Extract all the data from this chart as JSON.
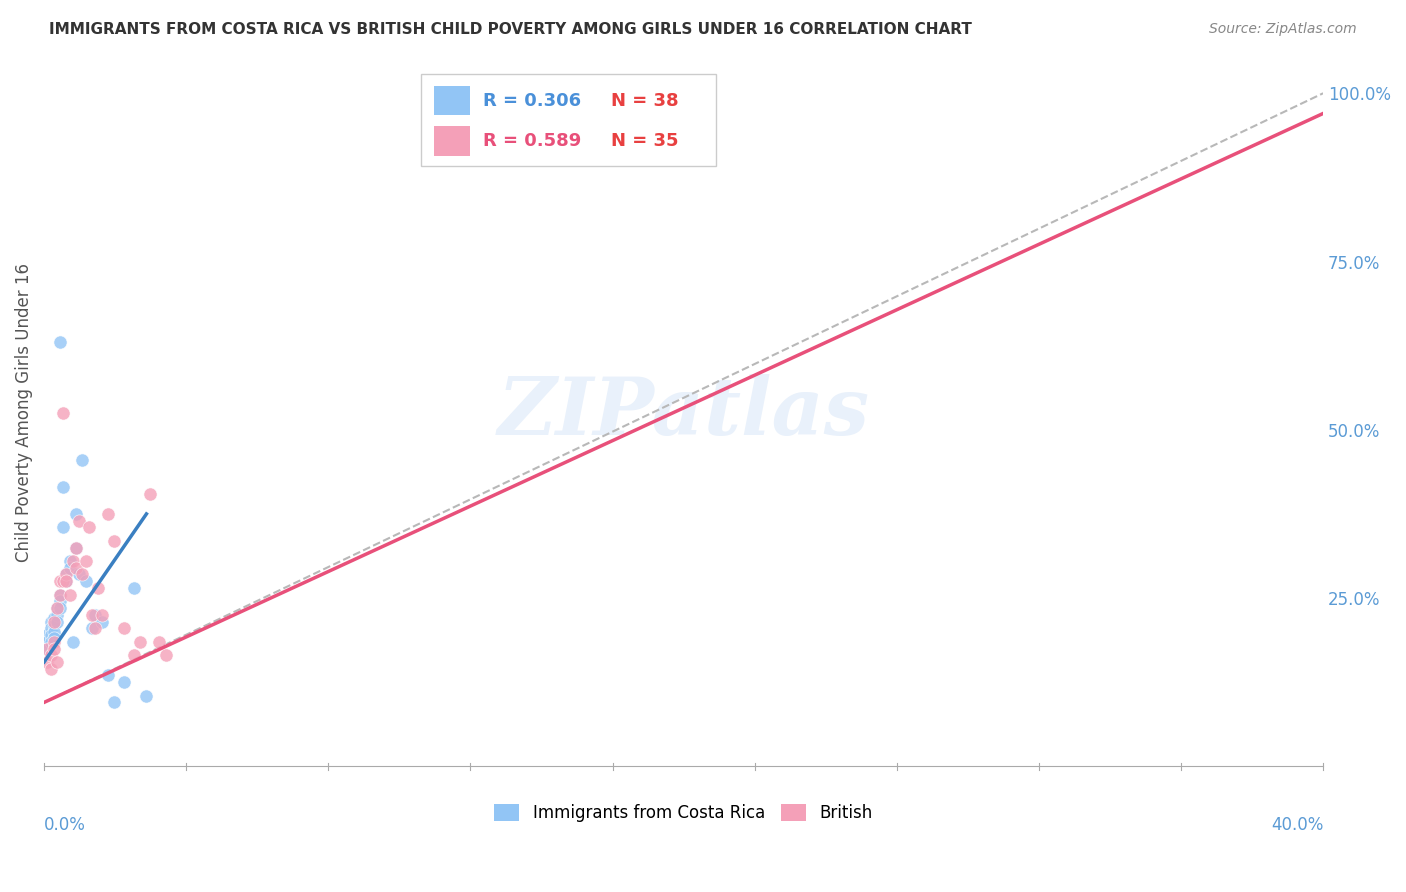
{
  "title": "IMMIGRANTS FROM COSTA RICA VS BRITISH CHILD POVERTY AMONG GIRLS UNDER 16 CORRELATION CHART",
  "source": "Source: ZipAtlas.com",
  "ylabel": "Child Poverty Among Girls Under 16",
  "legend1_r": "R = 0.306",
  "legend1_n": "N = 38",
  "legend2_r": "R = 0.589",
  "legend2_n": "N = 35",
  "legend_label1": "Immigrants from Costa Rica",
  "legend_label2": "British",
  "blue_color": "#92c5f5",
  "pink_color": "#f4a0b8",
  "blue_line_color": "#3a7fc1",
  "pink_line_color": "#e8507a",
  "dashed_line_color": "#b8b8b8",
  "legend_r_blue": "#4a90d9",
  "legend_r_pink": "#e8507a",
  "legend_n_color": "#e84040",
  "background_color": "#ffffff",
  "watermark": "ZIPatlas",
  "blue_scatter_x": [
    0.001,
    0.001,
    0.001,
    0.002,
    0.002,
    0.002,
    0.002,
    0.003,
    0.003,
    0.003,
    0.003,
    0.004,
    0.004,
    0.004,
    0.005,
    0.005,
    0.005,
    0.005,
    0.006,
    0.006,
    0.007,
    0.007,
    0.008,
    0.008,
    0.009,
    0.01,
    0.01,
    0.011,
    0.012,
    0.013,
    0.015,
    0.016,
    0.018,
    0.02,
    0.022,
    0.025,
    0.028,
    0.032
  ],
  "blue_scatter_y": [
    0.195,
    0.185,
    0.175,
    0.215,
    0.205,
    0.195,
    0.185,
    0.22,
    0.21,
    0.2,
    0.19,
    0.235,
    0.225,
    0.215,
    0.63,
    0.255,
    0.245,
    0.235,
    0.415,
    0.355,
    0.285,
    0.275,
    0.305,
    0.295,
    0.185,
    0.375,
    0.325,
    0.285,
    0.455,
    0.275,
    0.205,
    0.225,
    0.215,
    0.135,
    0.095,
    0.125,
    0.265,
    0.105
  ],
  "pink_scatter_x": [
    0.001,
    0.001,
    0.002,
    0.002,
    0.003,
    0.003,
    0.003,
    0.004,
    0.004,
    0.005,
    0.005,
    0.006,
    0.006,
    0.007,
    0.007,
    0.008,
    0.009,
    0.01,
    0.01,
    0.011,
    0.012,
    0.013,
    0.014,
    0.015,
    0.016,
    0.017,
    0.018,
    0.02,
    0.022,
    0.025,
    0.028,
    0.03,
    0.033,
    0.036,
    0.038
  ],
  "pink_scatter_y": [
    0.175,
    0.155,
    0.165,
    0.145,
    0.185,
    0.215,
    0.175,
    0.155,
    0.235,
    0.255,
    0.275,
    0.525,
    0.275,
    0.285,
    0.275,
    0.255,
    0.305,
    0.325,
    0.295,
    0.365,
    0.285,
    0.305,
    0.355,
    0.225,
    0.205,
    0.265,
    0.225,
    0.375,
    0.335,
    0.205,
    0.165,
    0.185,
    0.405,
    0.185,
    0.165
  ],
  "xlim": [
    0.0,
    0.4
  ],
  "ylim": [
    0.0,
    1.05
  ],
  "blue_line_x0": 0.0,
  "blue_line_y0": 0.155,
  "blue_line_x1": 0.032,
  "blue_line_y1": 0.375,
  "pink_line_x0": 0.0,
  "pink_line_y0": 0.095,
  "pink_line_x1": 0.4,
  "pink_line_y1": 0.97,
  "dash_line_x0": 0.0,
  "dash_line_y0": 0.095,
  "dash_line_x1": 0.4,
  "dash_line_y1": 1.0
}
